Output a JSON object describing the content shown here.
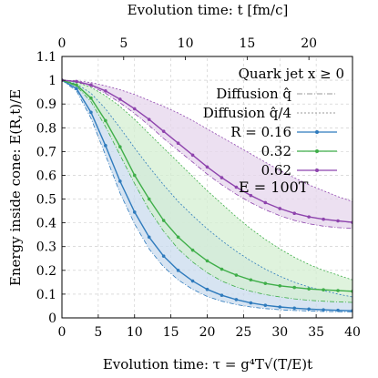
{
  "chart_data": {
    "type": "line",
    "top_axis": {
      "label": "Evolution time: t [fm/c]",
      "ticks": [
        0,
        5,
        10,
        15,
        20
      ],
      "factor": 1.7
    },
    "xlabel": "Evolution time: τ = g⁴T√(T/E)t",
    "ylabel": "Energy inside cone: E(R,t)/E",
    "xlim": [
      0,
      40
    ],
    "ylim": [
      0,
      1.1
    ],
    "xticks": [
      0,
      5,
      10,
      15,
      20,
      25,
      30,
      35,
      40
    ],
    "yticks": [
      0,
      0.1,
      0.2,
      0.3,
      0.4,
      0.5,
      0.6,
      0.7,
      0.8,
      0.9,
      1,
      1.1
    ],
    "ytick_labels": [
      "0",
      "0.1",
      "0.2",
      "0.3",
      "0.4",
      "0.5",
      "0.6",
      "0.7",
      "0.8",
      "0.9",
      "1",
      "1.1"
    ],
    "grid": true,
    "legend": {
      "placement": "top-right",
      "title": "Quark jet   x ≥ 0",
      "diffusion_q": "Diffusion q̂",
      "diffusion_q4": "Diffusion q̂/4",
      "r_prefix": "R = "
    },
    "annotation": "E = 100T",
    "colors": {
      "R_0.16": "#2f7bbd",
      "R_0.32": "#3fae49",
      "R_0.62": "#8e44ad",
      "band_0.16": "#c9dbee",
      "band_0.32": "#d4efd1",
      "band_0.62": "#e5d5ec",
      "diffusion": "#999999"
    },
    "series": [
      {
        "name": "0.16",
        "x": [
          0,
          2,
          4,
          6,
          8,
          10,
          12,
          14,
          16,
          18,
          20,
          22,
          24,
          26,
          28,
          30,
          32,
          34,
          36,
          38,
          40
        ],
        "values": [
          1.0,
          0.965,
          0.865,
          0.725,
          0.575,
          0.445,
          0.34,
          0.26,
          0.2,
          0.155,
          0.12,
          0.095,
          0.077,
          0.063,
          0.053,
          0.046,
          0.041,
          0.037,
          0.034,
          0.032,
          0.03
        ],
        "diffusion_q": [
          1.0,
          0.955,
          0.84,
          0.685,
          0.525,
          0.395,
          0.29,
          0.215,
          0.16,
          0.12,
          0.09,
          0.07,
          0.056,
          0.046,
          0.039,
          0.034,
          0.031,
          0.029,
          0.027,
          0.026,
          0.025
        ],
        "diffusion_q4": [
          1.0,
          0.985,
          0.945,
          0.88,
          0.8,
          0.715,
          0.635,
          0.56,
          0.49,
          0.43,
          0.375,
          0.325,
          0.28,
          0.24,
          0.205,
          0.175,
          0.15,
          0.13,
          0.115,
          0.1,
          0.088
        ]
      },
      {
        "name": "0.32",
        "x": [
          0,
          2,
          4,
          6,
          8,
          10,
          12,
          14,
          16,
          18,
          20,
          22,
          24,
          26,
          28,
          30,
          32,
          34,
          36,
          38,
          40
        ],
        "values": [
          1.0,
          0.98,
          0.925,
          0.83,
          0.72,
          0.6,
          0.5,
          0.41,
          0.34,
          0.285,
          0.24,
          0.205,
          0.18,
          0.16,
          0.145,
          0.135,
          0.128,
          0.122,
          0.118,
          0.115,
          0.112
        ],
        "diffusion_q": [
          1.0,
          0.975,
          0.91,
          0.805,
          0.685,
          0.565,
          0.455,
          0.365,
          0.29,
          0.235,
          0.19,
          0.155,
          0.13,
          0.112,
          0.098,
          0.088,
          0.08,
          0.074,
          0.07,
          0.067,
          0.065
        ],
        "diffusion_q4": [
          1.0,
          0.992,
          0.97,
          0.935,
          0.89,
          0.835,
          0.775,
          0.715,
          0.655,
          0.595,
          0.535,
          0.48,
          0.425,
          0.375,
          0.33,
          0.29,
          0.255,
          0.225,
          0.2,
          0.18,
          0.16
        ]
      },
      {
        "name": "0.62",
        "x": [
          0,
          2,
          4,
          6,
          8,
          10,
          12,
          14,
          16,
          18,
          20,
          22,
          24,
          26,
          28,
          30,
          32,
          34,
          36,
          38,
          40
        ],
        "values": [
          1.0,
          0.995,
          0.98,
          0.955,
          0.92,
          0.88,
          0.835,
          0.785,
          0.735,
          0.685,
          0.635,
          0.59,
          0.55,
          0.515,
          0.485,
          0.46,
          0.44,
          0.425,
          0.415,
          0.408,
          0.402
        ],
        "diffusion_q": [
          1.0,
          0.993,
          0.975,
          0.945,
          0.905,
          0.86,
          0.81,
          0.755,
          0.705,
          0.655,
          0.605,
          0.56,
          0.52,
          0.485,
          0.455,
          0.43,
          0.41,
          0.396,
          0.386,
          0.38,
          0.376
        ],
        "diffusion_q4": [
          1.0,
          0.998,
          0.99,
          0.977,
          0.96,
          0.94,
          0.915,
          0.89,
          0.862,
          0.83,
          0.795,
          0.76,
          0.725,
          0.69,
          0.655,
          0.62,
          0.59,
          0.56,
          0.535,
          0.51,
          0.49
        ]
      }
    ]
  }
}
